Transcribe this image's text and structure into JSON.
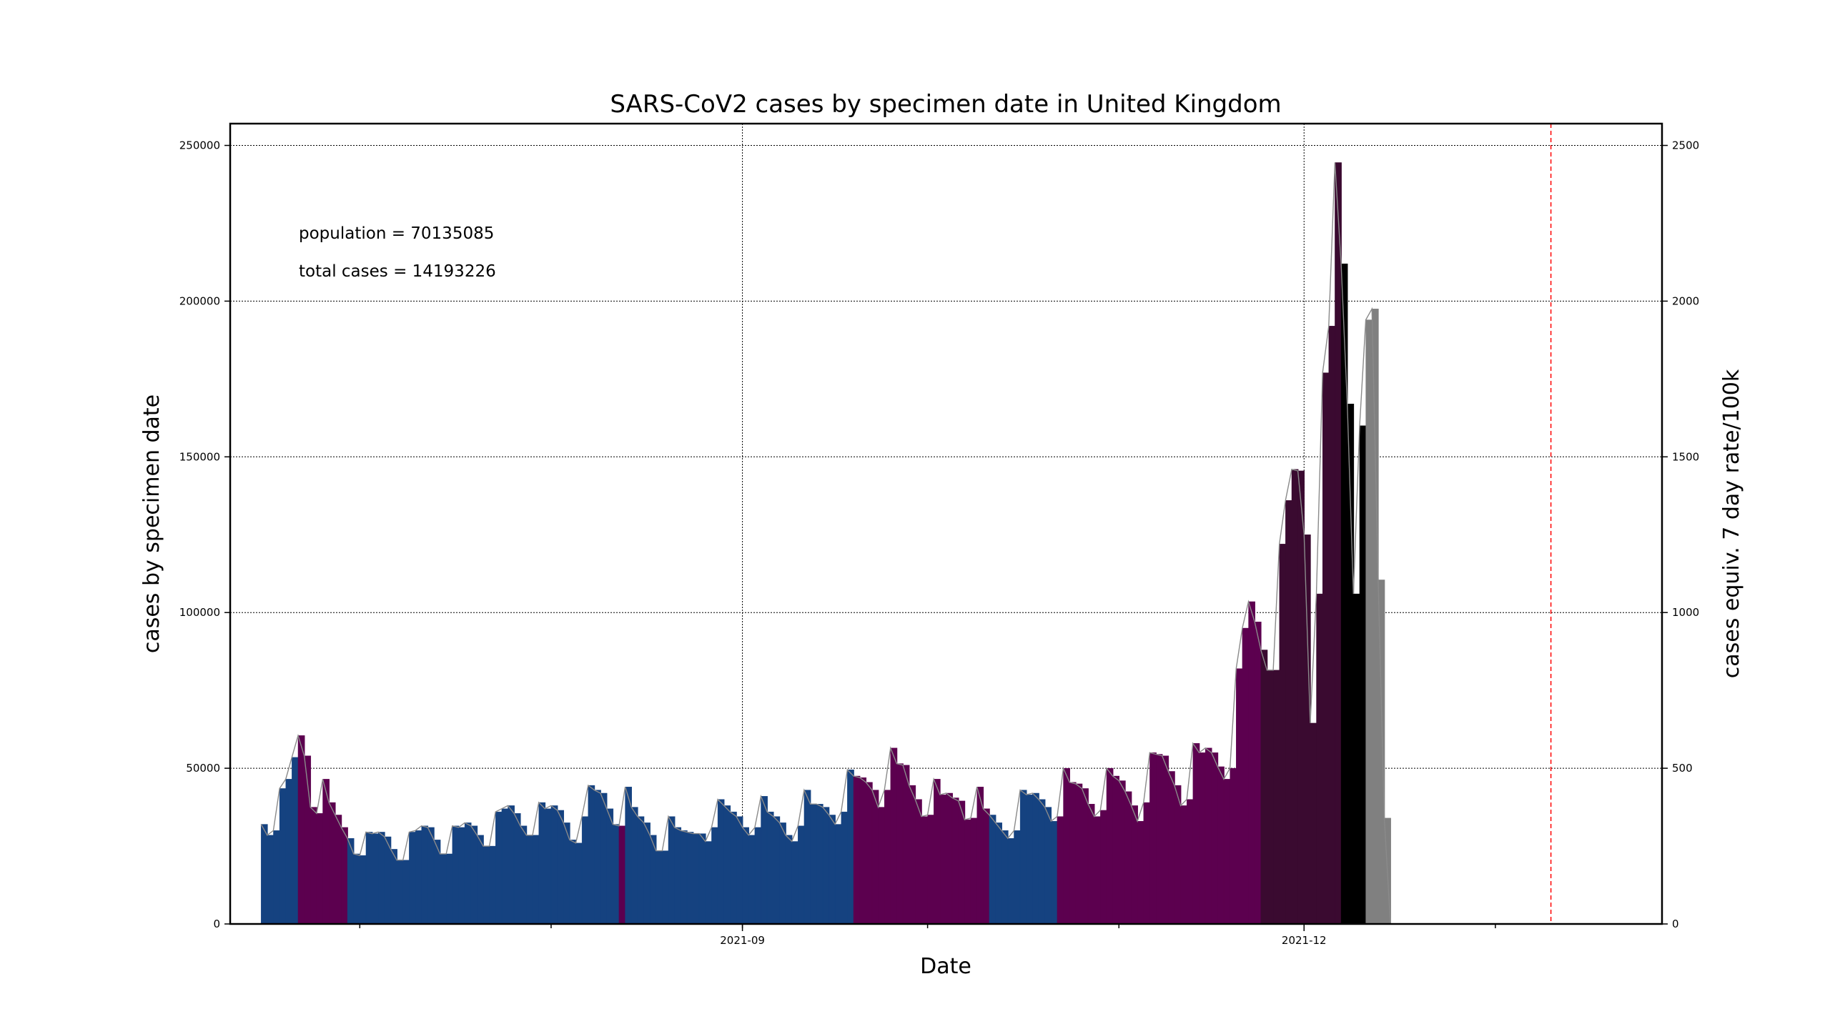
{
  "chart_data": {
    "type": "bar",
    "title": "SARS-CoV2 cases by specimen date in United Kingdom",
    "xlabel": "Date",
    "ylabel": "cases by specimen date",
    "y2label": "cases equiv. 7 day rate/100k",
    "annotations": [
      "population = 70135085",
      "total cases = 14193226"
    ],
    "x_ticks": [
      "2021-09",
      "2021-12"
    ],
    "y_ticks": [
      "0",
      "50000",
      "100000",
      "150000",
      "200000",
      "250000"
    ],
    "y2_ticks": [
      "0",
      "500",
      "1000",
      "1500",
      "2000",
      "2500"
    ],
    "ylim": [
      0,
      257000
    ],
    "y2lim": [
      0,
      2570
    ],
    "xlim": [
      "2021-06-10",
      "2022-01-28"
    ],
    "grid": true,
    "reference_line": {
      "date": "2022-01-10",
      "color": "#ff0000",
      "style": "dashed"
    },
    "start_date": "2021-06-15",
    "colors": {
      "blue": "#154280",
      "purple": "#5c004f",
      "darkpurple": "#3a0a30",
      "black": "#000000",
      "gray": "#808080",
      "line": "#8a8a8a"
    },
    "values": [
      32000,
      28500,
      30000,
      43500,
      46500,
      53500,
      60500,
      54000,
      37500,
      35500,
      46500,
      39000,
      35000,
      31000,
      27500,
      22500,
      22000,
      29500,
      29000,
      29500,
      28000,
      24000,
      20500,
      20500,
      29500,
      30000,
      31500,
      31000,
      27000,
      22500,
      22500,
      31500,
      31000,
      32500,
      31500,
      28500,
      25000,
      25000,
      36000,
      37000,
      38000,
      35500,
      31500,
      28500,
      28500,
      39000,
      37000,
      38000,
      36500,
      32500,
      27000,
      26000,
      34500,
      44500,
      43000,
      42000,
      37000,
      32000,
      31500,
      44000,
      37500,
      34500,
      32500,
      28500,
      23500,
      23500,
      34500,
      31000,
      30000,
      29500,
      29000,
      29000,
      26500,
      31000,
      40000,
      38000,
      36000,
      34500,
      31000,
      28500,
      31000,
      41000,
      36000,
      34500,
      32500,
      28500,
      26500,
      31500,
      43000,
      38500,
      38500,
      37500,
      35000,
      32000,
      36000,
      49500,
      47500,
      47000,
      45500,
      43000,
      37500,
      43000,
      56500,
      51500,
      51000,
      44500,
      40000,
      34500,
      35000,
      46500,
      41500,
      42000,
      40500,
      39500,
      33500,
      34000,
      44000,
      37000,
      35000,
      32500,
      30000,
      27500,
      30000,
      43000,
      41500,
      42000,
      40000,
      37500,
      33000,
      34500,
      50000,
      45500,
      45000,
      43500,
      38500,
      34500,
      36500,
      50000,
      47500,
      46000,
      42500,
      38000,
      33000,
      39000,
      55000,
      54500,
      54000,
      49000,
      44500,
      38000,
      40000,
      58000,
      55000,
      56500,
      55000,
      50500,
      46500,
      50000,
      82000,
      95000,
      103500,
      97000,
      88000,
      81500,
      81500,
      122000,
      136000,
      146000,
      145500,
      125000,
      64500,
      106000,
      177000,
      192000,
      244500,
      212000,
      167000,
      106000,
      160000,
      194000,
      197500,
      110500,
      34000,
      0
    ],
    "segments": [
      {
        "from": 0,
        "to": 5,
        "color": "blue"
      },
      {
        "from": 6,
        "to": 13,
        "color": "purple"
      },
      {
        "from": 14,
        "to": 57,
        "color": "blue"
      },
      {
        "from": 58,
        "to": 58,
        "color": "purple"
      },
      {
        "from": 59,
        "to": 95,
        "color": "blue"
      },
      {
        "from": 96,
        "to": 117,
        "color": "purple"
      },
      {
        "from": 118,
        "to": 128,
        "color": "blue"
      },
      {
        "from": 129,
        "to": 161,
        "color": "purple"
      },
      {
        "from": 162,
        "to": 174,
        "color": "darkpurple"
      },
      {
        "from": 175,
        "to": 178,
        "color": "black"
      },
      {
        "from": 179,
        "to": 184,
        "color": "gray"
      }
    ]
  }
}
